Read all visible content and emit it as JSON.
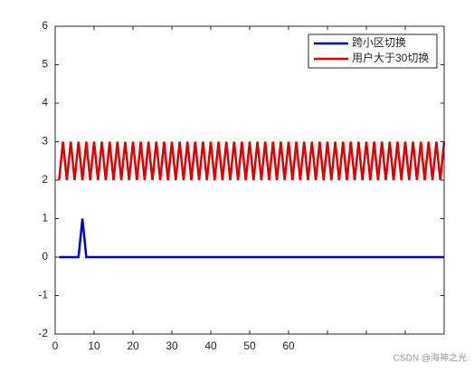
{
  "chart_data": {
    "type": "line",
    "x": [
      1,
      2,
      3,
      4,
      5,
      6,
      7,
      8,
      9,
      10,
      11,
      12,
      13,
      14,
      15,
      16,
      17,
      18,
      19,
      20,
      21,
      22,
      23,
      24,
      25,
      26,
      27,
      28,
      29,
      30,
      31,
      32,
      33,
      34,
      35,
      36,
      37,
      38,
      39,
      40,
      41,
      42,
      43,
      44,
      45,
      46,
      47,
      48,
      49,
      50,
      51,
      52,
      53,
      54,
      55,
      56,
      57,
      58,
      59,
      60,
      61,
      62,
      63,
      64,
      65,
      66,
      67,
      68,
      69,
      70,
      71,
      72,
      73,
      74,
      75,
      76,
      77,
      78,
      79,
      80,
      81,
      82,
      83,
      84,
      85,
      86,
      87,
      88,
      89,
      90,
      91,
      92,
      93,
      94,
      95,
      96,
      97,
      98,
      99,
      100
    ],
    "series": [
      {
        "name": "跨小区切换",
        "color": "#0000cc",
        "values": [
          0,
          0,
          0,
          0,
          0,
          0,
          1,
          0,
          0,
          0,
          0,
          0,
          0,
          0,
          0,
          0,
          0,
          0,
          0,
          0,
          0,
          0,
          0,
          0,
          0,
          0,
          0,
          0,
          0,
          0,
          0,
          0,
          0,
          0,
          0,
          0,
          0,
          0,
          0,
          0,
          0,
          0,
          0,
          0,
          0,
          0,
          0,
          0,
          0,
          0,
          0,
          0,
          0,
          0,
          0,
          0,
          0,
          0,
          0,
          0,
          0,
          0,
          0,
          0,
          0,
          0,
          0,
          0,
          0,
          0,
          0,
          0,
          0,
          0,
          0,
          0,
          0,
          0,
          0,
          0,
          0,
          0,
          0,
          0,
          0,
          0,
          0,
          0,
          0,
          0,
          0,
          0,
          0,
          0,
          0,
          0,
          0,
          0,
          0,
          0
        ]
      },
      {
        "name": "用户大于30切换",
        "color": "#dd0000",
        "values": [
          2,
          3,
          2,
          3,
          2,
          3,
          2,
          3,
          2,
          3,
          2,
          3,
          2,
          3,
          2,
          3,
          2,
          3,
          2,
          3,
          2,
          3,
          2,
          3,
          2,
          3,
          2,
          3,
          2,
          3,
          2,
          3,
          2,
          3,
          2,
          3,
          2,
          3,
          2,
          3,
          2,
          3,
          2,
          3,
          2,
          3,
          2,
          3,
          2,
          3,
          2,
          3,
          2,
          3,
          2,
          3,
          2,
          3,
          2,
          3,
          2,
          3,
          2,
          3,
          2,
          3,
          2,
          3,
          2,
          3,
          2,
          3,
          2,
          3,
          2,
          3,
          2,
          3,
          2,
          3,
          2,
          3,
          2,
          3,
          2,
          3,
          2,
          3,
          2,
          3,
          2,
          3,
          2,
          3,
          2,
          3,
          2,
          3,
          2,
          3
        ]
      }
    ],
    "xlim": [
      0,
      100
    ],
    "xticks": [
      0,
      10,
      20,
      30,
      40,
      50,
      60,
      {
        "value": 70,
        "label": null
      },
      {
        "value": 80,
        "label": null
      },
      {
        "value": 90,
        "label": null
      },
      {
        "value": 100,
        "label": null
      }
    ],
    "ylim": [
      -2,
      6
    ],
    "yticks": [
      -2,
      -1,
      0,
      1,
      2,
      3,
      4,
      5,
      6
    ],
    "grid": false,
    "legend": "upper right"
  },
  "watermark": "CSDN @海神之光"
}
